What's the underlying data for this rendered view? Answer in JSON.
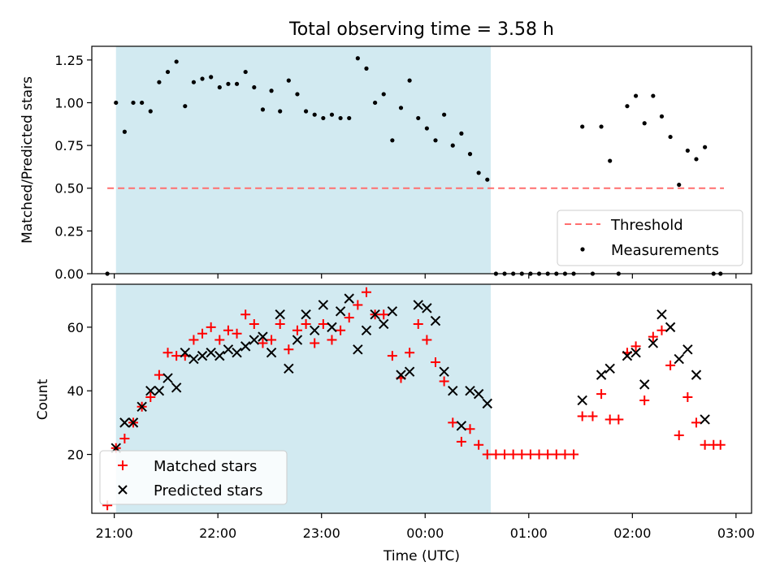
{
  "title": "Total observing time = 3.58 h",
  "colors": {
    "shade": "#add8e6",
    "threshold": "#ff6e6e",
    "measurement": "#000000",
    "matched": "#ff0000",
    "predicted": "#000000"
  },
  "chart_data": [
    {
      "type": "scatter",
      "ylabel": "Matched/Predicted stars",
      "ylim": [
        0,
        1.33
      ],
      "yticks": [
        0.0,
        0.25,
        0.5,
        0.75,
        1.0,
        1.25
      ],
      "ytick_labels": [
        "0.00",
        "0.25",
        "0.50",
        "0.75",
        "1.00",
        "1.25"
      ],
      "xlim": [
        "20:47",
        "03:09"
      ],
      "x_unit": "Time (UTC)",
      "shaded_interval": [
        "21:01",
        "00:38"
      ],
      "threshold": {
        "name": "Threshold",
        "value": 0.5,
        "x_range": [
          "20:56",
          "02:53"
        ],
        "style": "dashed"
      },
      "legend": {
        "position": "lower right",
        "entries": [
          "Threshold",
          "Measurements"
        ]
      },
      "series": [
        {
          "name": "Measurements",
          "marker": "dot",
          "points": [
            [
              "20:56",
              0.0
            ],
            [
              "21:01",
              1.0
            ],
            [
              "21:06",
              0.83
            ],
            [
              "21:11",
              1.0
            ],
            [
              "21:16",
              1.0
            ],
            [
              "21:21",
              0.95
            ],
            [
              "21:26",
              1.12
            ],
            [
              "21:31",
              1.18
            ],
            [
              "21:36",
              1.24
            ],
            [
              "21:41",
              0.98
            ],
            [
              "21:46",
              1.12
            ],
            [
              "21:51",
              1.14
            ],
            [
              "21:56",
              1.15
            ],
            [
              "22:01",
              1.09
            ],
            [
              "22:06",
              1.11
            ],
            [
              "22:11",
              1.11
            ],
            [
              "22:16",
              1.18
            ],
            [
              "22:21",
              1.09
            ],
            [
              "22:26",
              0.96
            ],
            [
              "22:31",
              1.07
            ],
            [
              "22:36",
              0.95
            ],
            [
              "22:41",
              1.13
            ],
            [
              "22:46",
              1.05
            ],
            [
              "22:51",
              0.95
            ],
            [
              "22:56",
              0.93
            ],
            [
              "23:01",
              0.91
            ],
            [
              "23:06",
              0.93
            ],
            [
              "23:11",
              0.91
            ],
            [
              "23:16",
              0.91
            ],
            [
              "23:21",
              1.26
            ],
            [
              "23:26",
              1.2
            ],
            [
              "23:31",
              1.0
            ],
            [
              "23:36",
              1.05
            ],
            [
              "23:41",
              0.78
            ],
            [
              "23:46",
              0.97
            ],
            [
              "23:51",
              1.13
            ],
            [
              "23:56",
              0.91
            ],
            [
              "00:01",
              0.85
            ],
            [
              "00:06",
              0.78
            ],
            [
              "00:11",
              0.93
            ],
            [
              "00:16",
              0.75
            ],
            [
              "00:21",
              0.82
            ],
            [
              "00:26",
              0.7
            ],
            [
              "00:31",
              0.59
            ],
            [
              "00:36",
              0.55
            ],
            [
              "00:41",
              0.0
            ],
            [
              "00:46",
              0.0
            ],
            [
              "00:51",
              0.0
            ],
            [
              "00:56",
              0.0
            ],
            [
              "01:01",
              0.0
            ],
            [
              "01:06",
              0.0
            ],
            [
              "01:11",
              0.0
            ],
            [
              "01:16",
              0.0
            ],
            [
              "01:21",
              0.0
            ],
            [
              "01:26",
              0.0
            ],
            [
              "01:31",
              0.86
            ],
            [
              "01:37",
              0.0
            ],
            [
              "01:42",
              0.86
            ],
            [
              "01:47",
              0.66
            ],
            [
              "01:52",
              0.0
            ],
            [
              "01:57",
              0.98
            ],
            [
              "02:02",
              1.04
            ],
            [
              "02:07",
              0.88
            ],
            [
              "02:12",
              1.04
            ],
            [
              "02:17",
              0.92
            ],
            [
              "02:22",
              0.8
            ],
            [
              "02:27",
              0.52
            ],
            [
              "02:32",
              0.72
            ],
            [
              "02:37",
              0.67
            ],
            [
              "02:42",
              0.74
            ],
            [
              "02:47",
              0.0
            ],
            [
              "02:51",
              0.0
            ]
          ]
        }
      ]
    },
    {
      "type": "scatter",
      "ylabel": "Count",
      "xlabel": "Time (UTC)",
      "ylim": [
        1.5,
        73.5
      ],
      "yticks": [
        20,
        40,
        60
      ],
      "ytick_labels": [
        "20",
        "40",
        "60"
      ],
      "xlim": [
        "20:47",
        "03:09"
      ],
      "xticks": [
        "21:00",
        "22:00",
        "23:00",
        "00:00",
        "01:00",
        "02:00",
        "03:00"
      ],
      "xtick_labels": [
        "21:00",
        "22:00",
        "23:00",
        "00:00",
        "01:00",
        "02:00",
        "03:00"
      ],
      "shaded_interval": [
        "21:01",
        "00:38"
      ],
      "legend": {
        "position": "lower left",
        "entries": [
          "Matched stars",
          "Predicted stars"
        ]
      },
      "series": [
        {
          "name": "Matched stars",
          "marker": "plus",
          "points": [
            [
              "20:56",
              4
            ],
            [
              "21:01",
              22
            ],
            [
              "21:06",
              25
            ],
            [
              "21:11",
              30
            ],
            [
              "21:16",
              35
            ],
            [
              "21:21",
              38
            ],
            [
              "21:26",
              45
            ],
            [
              "21:31",
              52
            ],
            [
              "21:36",
              51
            ],
            [
              "21:41",
              51
            ],
            [
              "21:46",
              56
            ],
            [
              "21:51",
              58
            ],
            [
              "21:56",
              60
            ],
            [
              "22:01",
              56
            ],
            [
              "22:06",
              59
            ],
            [
              "22:11",
              58
            ],
            [
              "22:16",
              64
            ],
            [
              "22:21",
              61
            ],
            [
              "22:26",
              55
            ],
            [
              "22:31",
              56
            ],
            [
              "22:36",
              61
            ],
            [
              "22:41",
              53
            ],
            [
              "22:46",
              59
            ],
            [
              "22:51",
              61
            ],
            [
              "22:56",
              55
            ],
            [
              "23:01",
              61
            ],
            [
              "23:06",
              56
            ],
            [
              "23:11",
              59
            ],
            [
              "23:16",
              63
            ],
            [
              "23:21",
              67
            ],
            [
              "23:26",
              71
            ],
            [
              "23:31",
              64
            ],
            [
              "23:36",
              64
            ],
            [
              "23:41",
              51
            ],
            [
              "23:46",
              44
            ],
            [
              "23:51",
              52
            ],
            [
              "23:56",
              61
            ],
            [
              "00:01",
              56
            ],
            [
              "00:06",
              49
            ],
            [
              "00:11",
              43
            ],
            [
              "00:16",
              30
            ],
            [
              "00:21",
              24
            ],
            [
              "00:26",
              28
            ],
            [
              "00:31",
              23
            ],
            [
              "00:36",
              20
            ],
            [
              "00:41",
              20
            ],
            [
              "00:46",
              20
            ],
            [
              "00:51",
              20
            ],
            [
              "00:56",
              20
            ],
            [
              "01:01",
              20
            ],
            [
              "01:06",
              20
            ],
            [
              "01:11",
              20
            ],
            [
              "01:16",
              20
            ],
            [
              "01:21",
              20
            ],
            [
              "01:26",
              20
            ],
            [
              "01:31",
              32
            ],
            [
              "01:37",
              32
            ],
            [
              "01:42",
              39
            ],
            [
              "01:47",
              31
            ],
            [
              "01:52",
              31
            ],
            [
              "01:57",
              52
            ],
            [
              "02:02",
              54
            ],
            [
              "02:07",
              37
            ],
            [
              "02:12",
              57
            ],
            [
              "02:17",
              59
            ],
            [
              "02:22",
              48
            ],
            [
              "02:27",
              26
            ],
            [
              "02:32",
              38
            ],
            [
              "02:37",
              30
            ],
            [
              "02:42",
              23
            ],
            [
              "02:47",
              23
            ],
            [
              "02:51",
              23
            ]
          ]
        },
        {
          "name": "Predicted stars",
          "marker": "x",
          "points": [
            [
              "21:01",
              22
            ],
            [
              "21:06",
              30
            ],
            [
              "21:11",
              30
            ],
            [
              "21:16",
              35
            ],
            [
              "21:21",
              40
            ],
            [
              "21:26",
              40
            ],
            [
              "21:31",
              44
            ],
            [
              "21:36",
              41
            ],
            [
              "21:41",
              52
            ],
            [
              "21:46",
              50
            ],
            [
              "21:51",
              51
            ],
            [
              "21:56",
              52
            ],
            [
              "22:01",
              51
            ],
            [
              "22:06",
              53
            ],
            [
              "22:11",
              52
            ],
            [
              "22:16",
              54
            ],
            [
              "22:21",
              56
            ],
            [
              "22:26",
              57
            ],
            [
              "22:31",
              52
            ],
            [
              "22:36",
              64
            ],
            [
              "22:41",
              47
            ],
            [
              "22:46",
              56
            ],
            [
              "22:51",
              64
            ],
            [
              "22:56",
              59
            ],
            [
              "23:01",
              67
            ],
            [
              "23:06",
              60
            ],
            [
              "23:11",
              65
            ],
            [
              "23:16",
              69
            ],
            [
              "23:21",
              53
            ],
            [
              "23:26",
              59
            ],
            [
              "23:31",
              64
            ],
            [
              "23:36",
              61
            ],
            [
              "23:41",
              65
            ],
            [
              "23:46",
              45
            ],
            [
              "23:51",
              46
            ],
            [
              "23:56",
              67
            ],
            [
              "00:01",
              66
            ],
            [
              "00:06",
              62
            ],
            [
              "00:11",
              46
            ],
            [
              "00:16",
              40
            ],
            [
              "00:21",
              29
            ],
            [
              "00:26",
              40
            ],
            [
              "00:31",
              39
            ],
            [
              "00:36",
              36
            ],
            [
              "01:31",
              37
            ],
            [
              "01:42",
              45
            ],
            [
              "01:47",
              47
            ],
            [
              "01:57",
              51
            ],
            [
              "02:02",
              52
            ],
            [
              "02:07",
              42
            ],
            [
              "02:12",
              55
            ],
            [
              "02:17",
              64
            ],
            [
              "02:22",
              60
            ],
            [
              "02:27",
              50
            ],
            [
              "02:32",
              53
            ],
            [
              "02:37",
              45
            ],
            [
              "02:42",
              31
            ]
          ]
        }
      ]
    }
  ]
}
